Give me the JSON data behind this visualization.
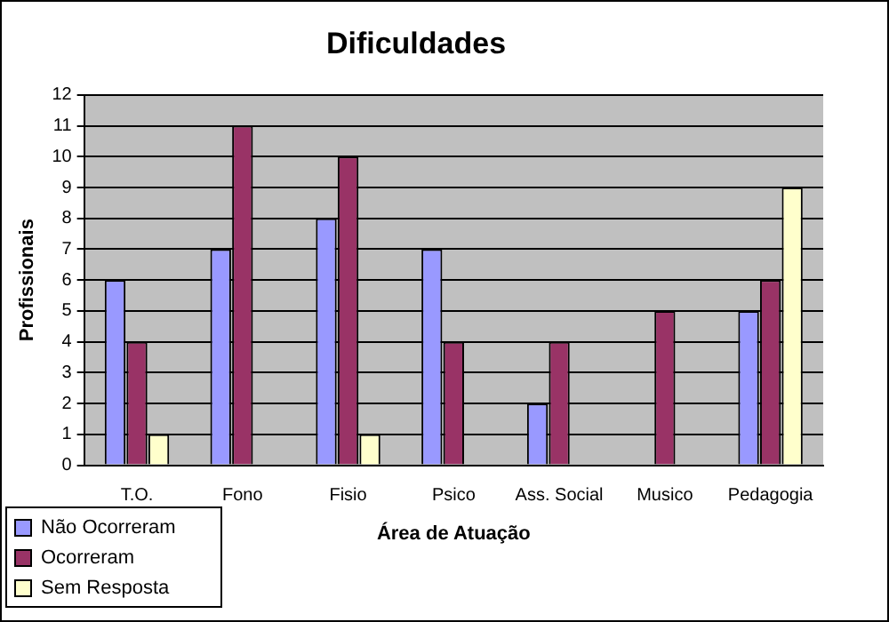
{
  "chart_data": {
    "type": "bar",
    "title": "Dificuldades",
    "xlabel": "Área de Atuação",
    "ylabel": "Profissionais",
    "categories": [
      "T.O.",
      "Fono",
      "Fisio",
      "Psico",
      "Ass. Social",
      "Musico",
      "Pedagogia"
    ],
    "series": [
      {
        "name": "Não Ocorreram",
        "color": "#9999ff",
        "values": [
          6,
          7,
          8,
          7,
          2,
          0,
          5
        ]
      },
      {
        "name": "Ocorreram",
        "color": "#993366",
        "values": [
          4,
          11,
          10,
          4,
          4,
          5,
          6
        ]
      },
      {
        "name": "Sem Resposta",
        "color": "#ffffcc",
        "values": [
          1,
          0,
          1,
          0,
          0,
          0,
          9
        ]
      }
    ],
    "ylim": [
      0,
      12
    ],
    "yticks": [
      0,
      1,
      2,
      3,
      4,
      5,
      6,
      7,
      8,
      9,
      10,
      11,
      12
    ],
    "grid": "y",
    "legend": "bottom left"
  }
}
